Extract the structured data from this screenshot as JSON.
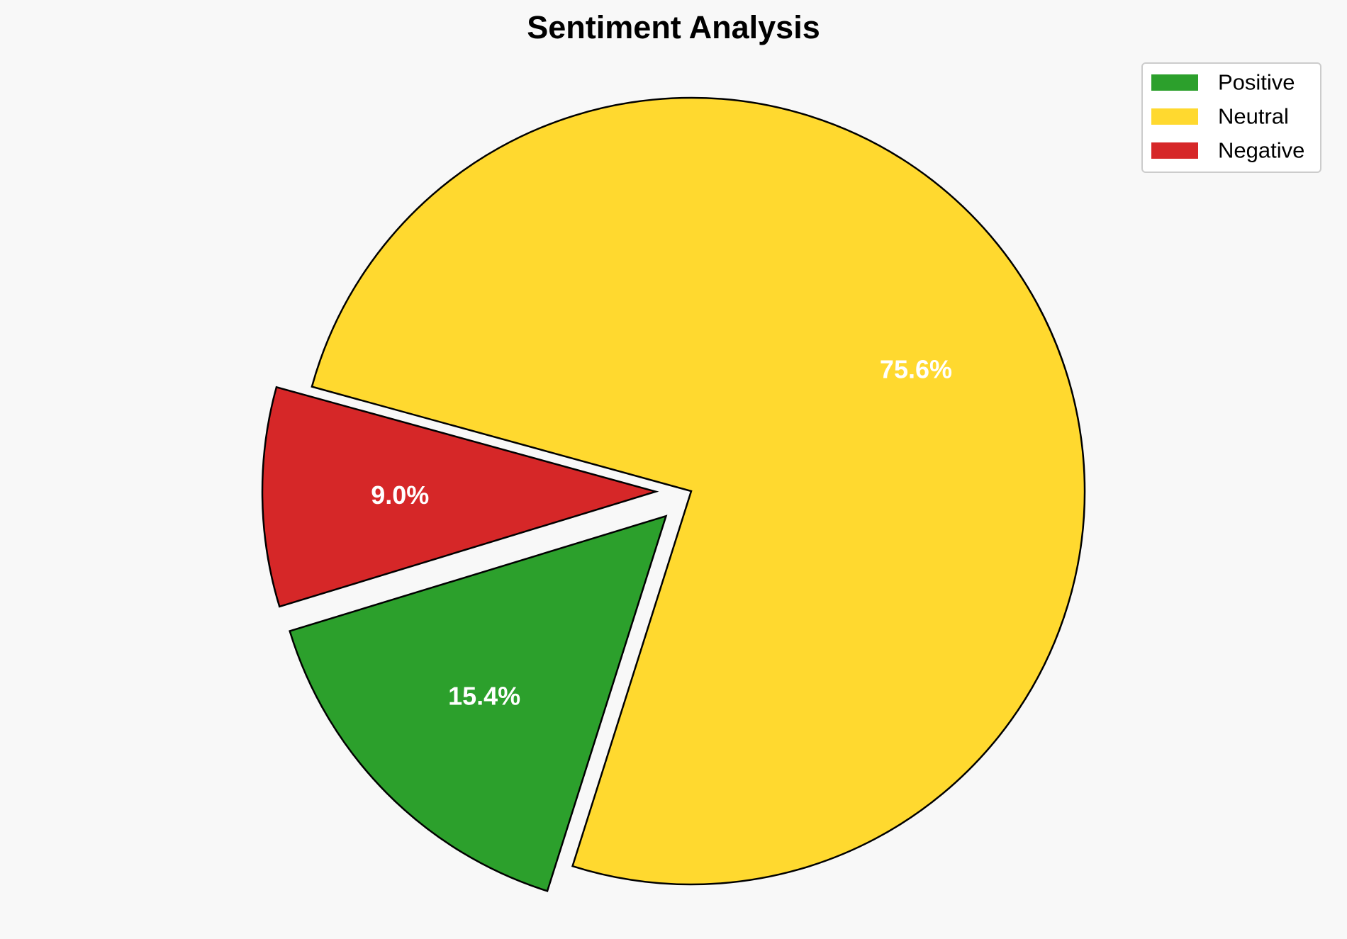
{
  "chart_data": {
    "type": "pie",
    "title": "Sentiment Analysis",
    "legend_position": "top-right",
    "slices": [
      {
        "label": "Positive",
        "value": 15.4,
        "pct_label": "15.4%",
        "color": "#2ca02c",
        "exploded": true
      },
      {
        "label": "Neutral",
        "value": 75.6,
        "pct_label": "75.6%",
        "color": "#ffd92f",
        "exploded": false
      },
      {
        "label": "Negative",
        "value": 9.0,
        "pct_label": "9.0%",
        "color": "#d62728",
        "exploded": true
      }
    ]
  }
}
